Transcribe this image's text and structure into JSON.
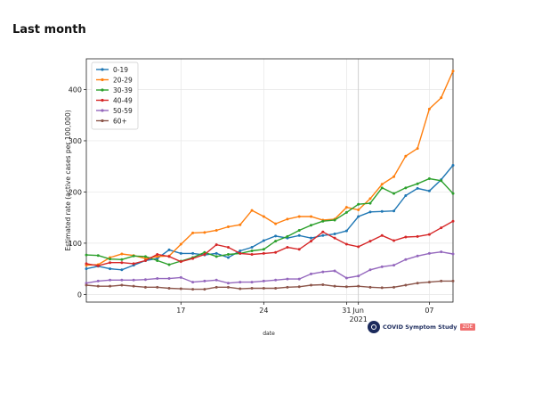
{
  "page": {
    "heading": "Last month"
  },
  "chart_data": {
    "type": "line",
    "title": "",
    "xlabel": "date",
    "ylabel": "Estimated rate (active cases per 100,000)",
    "x_start": "2021-05-09",
    "x_end": "2021-06-09",
    "ylim": [
      -15,
      460
    ],
    "y_ticks": [
      0,
      100,
      200,
      300,
      400
    ],
    "x_ticks": [
      {
        "date": "2021-05-17",
        "label": "17",
        "sublabel": ""
      },
      {
        "date": "2021-05-24",
        "label": "24",
        "sublabel": ""
      },
      {
        "date": "2021-05-31",
        "label": "31",
        "sublabel": ""
      },
      {
        "date": "2021-06-01",
        "label": "Jun",
        "sublabel": "2021"
      },
      {
        "date": "2021-06-07",
        "label": "07",
        "sublabel": ""
      }
    ],
    "vline_date": "2021-06-01",
    "legend_position": "upper-left",
    "grid": true,
    "dates": [
      "2021-05-09",
      "2021-05-10",
      "2021-05-11",
      "2021-05-12",
      "2021-05-13",
      "2021-05-14",
      "2021-05-15",
      "2021-05-16",
      "2021-05-17",
      "2021-05-18",
      "2021-05-19",
      "2021-05-20",
      "2021-05-21",
      "2021-05-22",
      "2021-05-23",
      "2021-05-24",
      "2021-05-25",
      "2021-05-26",
      "2021-05-27",
      "2021-05-28",
      "2021-05-29",
      "2021-05-30",
      "2021-05-31",
      "2021-06-01",
      "2021-06-02",
      "2021-06-03",
      "2021-06-04",
      "2021-06-05",
      "2021-06-06",
      "2021-06-07",
      "2021-06-08",
      "2021-06-09"
    ],
    "series": [
      {
        "name": "0-19",
        "color": "#1f77b4",
        "values": [
          50,
          55,
          50,
          48,
          57,
          66,
          70,
          87,
          80,
          80,
          77,
          80,
          72,
          85,
          92,
          105,
          114,
          110,
          115,
          110,
          115,
          118,
          124,
          152,
          161,
          162,
          163,
          193,
          207,
          202,
          224,
          252
        ]
      },
      {
        "name": "20-29",
        "color": "#ff7f0e",
        "values": [
          57,
          58,
          72,
          79,
          76,
          70,
          74,
          75,
          98,
          120,
          121,
          125,
          132,
          136,
          164,
          152,
          138,
          147,
          152,
          152,
          145,
          147,
          170,
          165,
          187,
          215,
          230,
          270,
          285,
          362,
          384,
          436
        ]
      },
      {
        "name": "30-39",
        "color": "#2ca02c",
        "values": [
          77,
          76,
          69,
          68,
          75,
          74,
          66,
          58,
          65,
          72,
          82,
          74,
          78,
          80,
          85,
          88,
          104,
          113,
          125,
          135,
          143,
          145,
          160,
          176,
          178,
          208,
          197,
          208,
          216,
          226,
          222,
          197
        ]
      },
      {
        "name": "40-49",
        "color": "#d62728",
        "values": [
          60,
          56,
          62,
          62,
          60,
          66,
          78,
          74,
          64,
          70,
          78,
          97,
          92,
          80,
          78,
          80,
          82,
          92,
          88,
          104,
          122,
          110,
          98,
          93,
          104,
          115,
          105,
          112,
          113,
          117,
          130,
          143
        ]
      },
      {
        "name": "50-59",
        "color": "#9467bd",
        "values": [
          22,
          26,
          28,
          28,
          28,
          29,
          31,
          31,
          33,
          24,
          26,
          28,
          22,
          24,
          24,
          26,
          28,
          30,
          30,
          40,
          44,
          46,
          32,
          36,
          48,
          54,
          57,
          68,
          75,
          80,
          83,
          79
        ]
      },
      {
        "name": "60+",
        "color": "#8c564b",
        "values": [
          18,
          16,
          16,
          18,
          16,
          14,
          14,
          12,
          11,
          10,
          10,
          14,
          14,
          11,
          12,
          12,
          12,
          14,
          15,
          18,
          19,
          16,
          15,
          16,
          14,
          13,
          14,
          18,
          22,
          24,
          26,
          26
        ]
      }
    ]
  },
  "branding": {
    "name": "COVID Symptom Study",
    "tag": "ZOE",
    "logo_icon": "covid-study-logo-icon"
  }
}
